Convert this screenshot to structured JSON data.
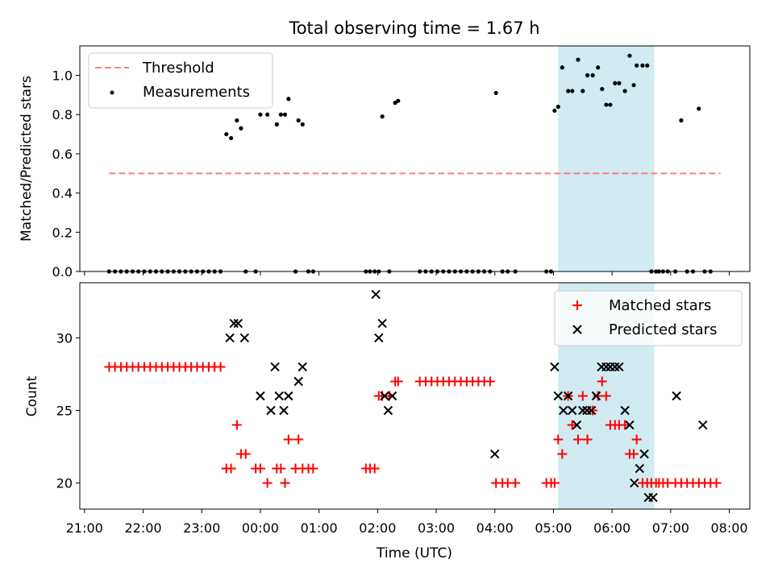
{
  "title": "Total observing time = 1.67 h",
  "chart_data": [
    {
      "type": "scatter",
      "ylabel": "Matched/Predicted stars",
      "ylim": [
        0,
        1.15
      ],
      "yticks": [
        "0.0",
        "0.2",
        "0.4",
        "0.6",
        "0.8",
        "1.0"
      ],
      "legend_position": "top-left",
      "threshold": {
        "name": "Threshold",
        "value": 0.5,
        "x_range": [
          21.42,
          31.85
        ],
        "color": "#ff7f7f"
      },
      "highlight": {
        "x_range": [
          29.08,
          30.72
        ],
        "color": "#add8e6"
      },
      "series": [
        {
          "name": "Measurements",
          "color": "#000000",
          "x": [
            21.42,
            21.52,
            21.62,
            21.72,
            21.82,
            21.92,
            22.02,
            22.12,
            22.22,
            22.32,
            22.42,
            22.52,
            22.62,
            22.72,
            22.82,
            22.92,
            23.02,
            23.12,
            23.22,
            23.32,
            23.42,
            23.5,
            23.6,
            23.67,
            23.75,
            23.92,
            24.0,
            24.12,
            24.28,
            24.35,
            24.42,
            24.48,
            24.6,
            24.65,
            24.72,
            24.82,
            24.9,
            25.8,
            25.87,
            25.95,
            26.02,
            26.08,
            26.2,
            26.3,
            26.35,
            26.72,
            26.82,
            26.92,
            27.02,
            27.12,
            27.22,
            27.32,
            27.42,
            27.52,
            27.62,
            27.72,
            27.82,
            27.92,
            28.02,
            28.13,
            28.22,
            28.35,
            28.88,
            28.96,
            29.02,
            29.08,
            29.15,
            29.25,
            29.32,
            29.42,
            29.5,
            29.58,
            29.67,
            29.76,
            29.83,
            29.9,
            29.97,
            30.05,
            30.12,
            30.22,
            30.3,
            30.37,
            30.42,
            30.52,
            30.6,
            30.67,
            30.75,
            30.8,
            30.87,
            30.95,
            31.08,
            31.18,
            31.28,
            31.38,
            31.48,
            31.58,
            31.68
          ],
          "y": [
            0,
            0,
            0,
            0,
            0,
            0,
            0,
            0,
            0,
            0,
            0,
            0,
            0,
            0,
            0,
            0,
            0,
            0,
            0,
            0,
            0.7,
            0.68,
            0.77,
            0.73,
            0,
            0,
            0.8,
            0.8,
            0.75,
            0.8,
            0.8,
            0.88,
            0,
            0.77,
            0.75,
            0,
            0,
            0,
            0,
            0,
            0,
            0.79,
            0,
            0.86,
            0.87,
            0,
            0,
            0,
            0,
            0,
            0,
            0,
            0,
            0,
            0,
            0,
            0,
            0,
            0.91,
            0,
            0,
            0,
            0,
            0,
            0.82,
            0.84,
            1.04,
            0.92,
            0.92,
            1.08,
            0.92,
            1.0,
            1.0,
            1.04,
            0.93,
            0.85,
            0.85,
            0.96,
            0.96,
            0.92,
            1.1,
            0.95,
            1.05,
            1.05,
            1.05,
            0,
            0,
            0,
            0,
            0,
            0,
            0.77,
            0,
            0,
            0.83,
            0,
            0
          ]
        }
      ]
    },
    {
      "type": "scatter",
      "xlabel": "Time (UTC)",
      "ylabel": "Count",
      "ylim": [
        18.2,
        33.8
      ],
      "yticks": [
        "20",
        "25",
        "30"
      ],
      "legend_position": "top-right",
      "highlight": {
        "x_range": [
          29.08,
          30.72
        ],
        "color": "#add8e6"
      },
      "series": [
        {
          "name": "Matched stars",
          "marker": "+",
          "color": "#ff0000",
          "x": [
            21.42,
            21.52,
            21.62,
            21.72,
            21.82,
            21.92,
            22.02,
            22.12,
            22.22,
            22.32,
            22.42,
            22.52,
            22.62,
            22.72,
            22.82,
            22.92,
            23.02,
            23.12,
            23.22,
            23.32,
            23.42,
            23.5,
            23.6,
            23.67,
            23.75,
            23.92,
            24.0,
            24.12,
            24.28,
            24.35,
            24.42,
            24.48,
            24.6,
            24.65,
            24.72,
            24.82,
            24.9,
            25.8,
            25.87,
            25.95,
            26.02,
            26.08,
            26.2,
            26.3,
            26.35,
            26.72,
            26.82,
            26.92,
            27.02,
            27.12,
            27.22,
            27.32,
            27.42,
            27.52,
            27.62,
            27.72,
            27.82,
            27.92,
            28.02,
            28.13,
            28.22,
            28.35,
            28.88,
            28.96,
            29.02,
            29.08,
            29.15,
            29.25,
            29.32,
            29.42,
            29.5,
            29.58,
            29.67,
            29.76,
            29.83,
            29.9,
            29.97,
            30.05,
            30.12,
            30.22,
            30.3,
            30.37,
            30.42,
            30.52,
            30.6,
            30.67,
            30.75,
            30.8,
            30.87,
            30.95,
            31.08,
            31.18,
            31.28,
            31.38,
            31.48,
            31.58,
            31.68,
            31.78
          ],
          "y": [
            28,
            28,
            28,
            28,
            28,
            28,
            28,
            28,
            28,
            28,
            28,
            28,
            28,
            28,
            28,
            28,
            28,
            28,
            28,
            28,
            21,
            21,
            24,
            22,
            22,
            21,
            21,
            20,
            21,
            21,
            20,
            23,
            21,
            23,
            21,
            21,
            21,
            21,
            21,
            21,
            26,
            26,
            26,
            27,
            27,
            27,
            27,
            27,
            27,
            27,
            27,
            27,
            27,
            27,
            27,
            27,
            27,
            27,
            20,
            20,
            20,
            20,
            20,
            20,
            20,
            23,
            22,
            26,
            24,
            23,
            26,
            23,
            25,
            26,
            27,
            26,
            24,
            24,
            24,
            24,
            22,
            22,
            23,
            20,
            20,
            20,
            20,
            20,
            20,
            20,
            20,
            20,
            20,
            20,
            20,
            20,
            20,
            20
          ]
        },
        {
          "name": "Predicted stars",
          "marker": "x",
          "color": "#000000",
          "x": [
            23.48,
            23.55,
            23.62,
            23.73,
            24.0,
            24.18,
            24.25,
            24.32,
            24.4,
            24.48,
            24.65,
            24.72,
            25.97,
            26.02,
            26.08,
            26.12,
            26.18,
            26.25,
            28.0,
            29.02,
            29.08,
            29.17,
            29.25,
            29.32,
            29.4,
            29.5,
            29.57,
            29.65,
            29.73,
            29.82,
            29.9,
            29.97,
            30.05,
            30.12,
            30.22,
            30.3,
            30.38,
            30.47,
            30.55,
            30.62,
            30.7,
            31.1,
            31.55
          ],
          "y": [
            30,
            31,
            31,
            30,
            26,
            25,
            28,
            26,
            25,
            26,
            27,
            28,
            33,
            30,
            31,
            26,
            25,
            26,
            22,
            28,
            26,
            25,
            26,
            25,
            24,
            25,
            25,
            25,
            26,
            28,
            28,
            28,
            28,
            28,
            25,
            24,
            20,
            21,
            22,
            19,
            19,
            26,
            24
          ]
        }
      ],
      "xticks": [
        "21:00",
        "22:00",
        "23:00",
        "00:00",
        "01:00",
        "02:00",
        "03:00",
        "04:00",
        "05:00",
        "06:00",
        "07:00",
        "08:00"
      ]
    }
  ]
}
